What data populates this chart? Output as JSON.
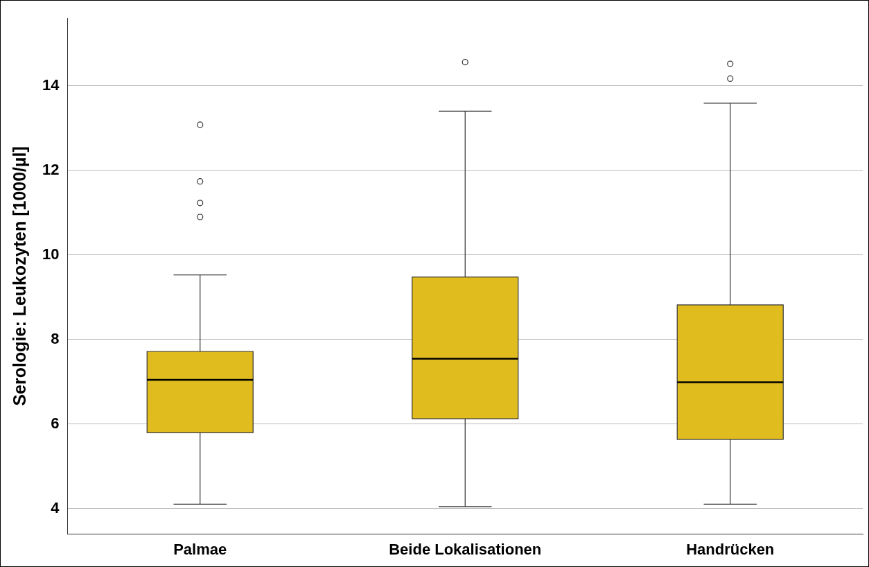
{
  "chart_data": {
    "type": "box",
    "ylabel": "Serologie: Leukozyten [1000/µl]",
    "categories": [
      "Palmae",
      "Beide Lokalisationen",
      "Handrücken"
    ],
    "series": [
      {
        "color": "#e0bc1f",
        "boxes": [
          {
            "low": 4.11,
            "q1": 5.8,
            "median": 7.05,
            "q3": 7.72,
            "high": 9.53,
            "outliers": [
              13.08,
              11.74,
              11.23,
              10.9
            ]
          },
          {
            "low": 4.05,
            "q1": 6.13,
            "median": 7.55,
            "q3": 9.48,
            "high": 13.4,
            "outliers": [
              14.56
            ]
          },
          {
            "low": 4.11,
            "q1": 5.64,
            "median": 6.99,
            "q3": 8.82,
            "high": 13.59,
            "outliers": [
              14.52,
              14.17
            ]
          }
        ]
      }
    ],
    "ylim": [
      3.4,
      15.6
    ],
    "yticks": [
      4,
      6,
      8,
      10,
      12,
      14
    ],
    "grid": "y",
    "legend": false
  }
}
